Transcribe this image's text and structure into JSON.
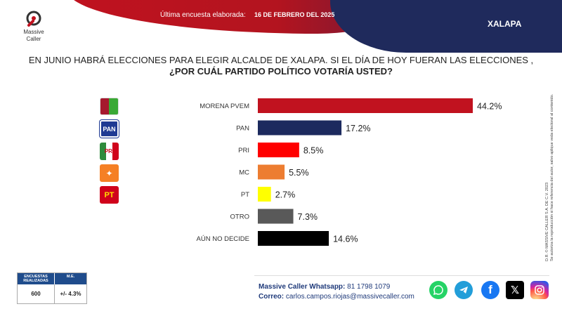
{
  "header": {
    "survey_label": "Última encuesta elaborada:",
    "survey_date": "16 DE FEBRERO DEL 2025",
    "city": "XALAPA"
  },
  "logo": {
    "name_line1": "Massive",
    "name_line2": "Caller",
    "icon": "massive-caller-logo"
  },
  "question": {
    "line1": "EN JUNIO HABRÁ ELECCIONES PARA ELEGIR ALCALDE DE XALAPA. SI EL DÍA DE HOY FUERAN LAS ELECCIONES ,",
    "line2": "¿POR CUÁL PARTIDO POLÍTICO VOTARÍA USTED?"
  },
  "side_note": {
    "line1": "D.R. © MASSIVE CALLER S.A. DE C.V. 2023",
    "line2": "Se autoriza la reproducción si hace referencia del autor, salvo aplique veda electoral al contenido."
  },
  "party_logos": [
    {
      "icon": "morena-pvem-logo",
      "text": "M|V",
      "bg": "#c8102e"
    },
    {
      "icon": "pan-logo",
      "text": "PAN",
      "bg": "#1f3a93"
    },
    {
      "icon": "pri-logo",
      "text": "PRI",
      "bg": "#ffffff"
    },
    {
      "icon": "mc-logo",
      "text": "MC",
      "bg": "#f58025"
    },
    {
      "icon": "pt-logo",
      "text": "PT",
      "bg": "#d0021b"
    }
  ],
  "chart_data": {
    "type": "bar",
    "orientation": "horizontal",
    "categories": [
      "MORENA PVEM",
      "PAN",
      "PRI",
      "MC",
      "PT",
      "OTRO",
      "AÚN NO DECIDE"
    ],
    "values": [
      44.2,
      17.2,
      8.5,
      5.5,
      2.7,
      7.3,
      14.6
    ],
    "value_labels": [
      "44.2%",
      "17.2%",
      "8.5%",
      "5.5%",
      "2.7%",
      "7.3%",
      "14.6%"
    ],
    "colors": [
      "#c1121f",
      "#1c2a5e",
      "#ff0000",
      "#ed7d31",
      "#ffff00",
      "#595959",
      "#000000"
    ],
    "unit": "%",
    "grid": false,
    "legend": "none"
  },
  "stats": {
    "h1": "ENCUESTAS REALIZADAS",
    "h2": "M.E.",
    "v1": "600",
    "v2": "+/- 4.3%"
  },
  "contact": {
    "whatsapp_label": "Massive Caller Whatsapp:",
    "whatsapp_number": "81 1798 1079",
    "email_label": "Correo:",
    "email": "carlos.campos.riojas@massivecaller.com"
  },
  "social": [
    {
      "icon": "whatsapp-icon",
      "color": "#25d366"
    },
    {
      "icon": "telegram-icon",
      "color": "#229ed9"
    },
    {
      "icon": "facebook-icon",
      "color": "#1877f2"
    },
    {
      "icon": "x-icon",
      "color": "#000000"
    },
    {
      "icon": "instagram-icon",
      "color": "#d6249f"
    }
  ]
}
